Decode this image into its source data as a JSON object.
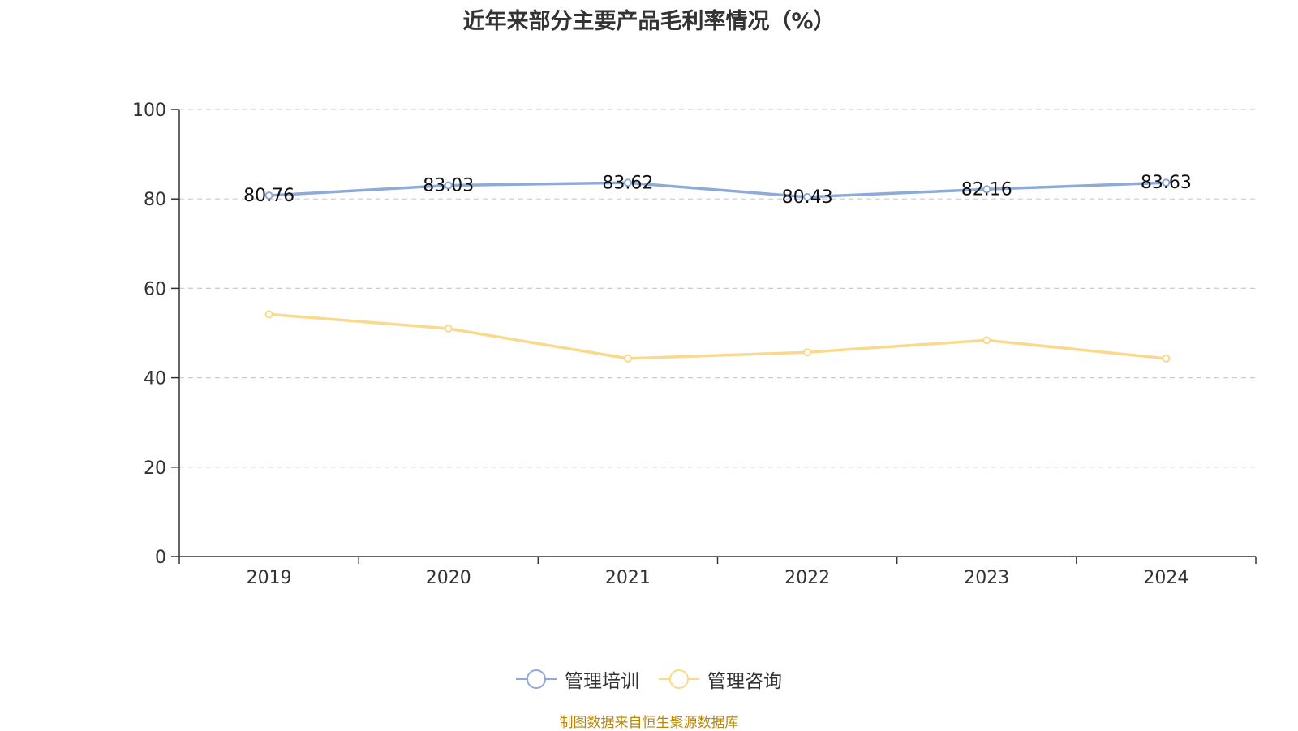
{
  "chart_data": {
    "type": "line",
    "title": "近年来部分主要产品毛利率情况（%）",
    "categories": [
      "2019",
      "2020",
      "2021",
      "2022",
      "2023",
      "2024"
    ],
    "ylim": [
      0,
      100
    ],
    "yticks": [
      0,
      20,
      40,
      60,
      80,
      100
    ],
    "grid": true,
    "legend_position": "bottom",
    "series": [
      {
        "name": "管理培训",
        "color": "#8eaad8",
        "values": [
          80.76,
          83.03,
          83.62,
          80.43,
          82.16,
          83.63
        ],
        "show_labels": true
      },
      {
        "name": "管理咨询",
        "color": "#fbd98c",
        "values": [
          54.2,
          51.0,
          44.3,
          45.7,
          48.4,
          44.3
        ],
        "show_labels": false
      }
    ]
  },
  "footer": "制图数据来自恒生聚源数据库"
}
